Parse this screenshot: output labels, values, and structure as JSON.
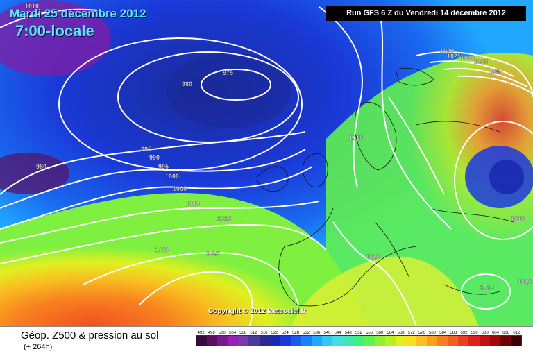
{
  "header": {
    "date": "Mardi 25 décembre 2012",
    "time": "7:00-locale",
    "run": "Run GFS 6 Z du Vendredi 14 décembre 2012"
  },
  "map": {
    "isobars": [
      {
        "label": "1010",
        "unit": "hPa"
      },
      {
        "label": "975",
        "unit": "hPa"
      },
      {
        "label": "980",
        "unit": "hPa"
      },
      {
        "label": "980",
        "unit": "hPa"
      },
      {
        "label": "985",
        "unit": "hPa"
      },
      {
        "label": "990",
        "unit": "hPa"
      },
      {
        "label": "995",
        "unit": "hPa"
      },
      {
        "label": "1000",
        "unit": "hPa"
      },
      {
        "label": "1005",
        "unit": "hPa"
      },
      {
        "label": "1010",
        "unit": "hPa"
      },
      {
        "label": "1015",
        "unit": "hPa"
      },
      {
        "label": "1020",
        "unit": "hPa"
      },
      {
        "label": "1025",
        "unit": "hPa"
      },
      {
        "label": "1020",
        "unit": "hPa"
      },
      {
        "label": "1025",
        "unit": "hPa"
      },
      {
        "label": "1030",
        "unit": "hPa"
      },
      {
        "label": "1035",
        "unit": "hPa"
      },
      {
        "label": "1040",
        "unit": "hPa"
      },
      {
        "label": "1015",
        "unit": "hPa"
      },
      {
        "label": "1010",
        "unit": "hPa"
      },
      {
        "label": "1010",
        "unit": "hPa"
      },
      {
        "label": "1010",
        "unit": "hPa"
      },
      {
        "label": "1010",
        "unit": "hPa"
      }
    ],
    "copyright": "Copyright © 2012 Meteociel.fr"
  },
  "footer": {
    "caption": "Géop. Z500 & pression au sol",
    "subcaption": "(+ 264h)"
  },
  "scale": {
    "labels": [
      "492",
      "496",
      "500",
      "504",
      "508",
      "512",
      "516",
      "520",
      "524",
      "528",
      "532",
      "536",
      "540",
      "544",
      "548",
      "552",
      "556",
      "560",
      "564",
      "568",
      "572",
      "576",
      "580",
      "584",
      "588",
      "592",
      "596",
      "600",
      "604",
      "608",
      "612"
    ],
    "colors": [
      "#3a0a3a",
      "#5a1060",
      "#7a1890",
      "#9a20b8",
      "#7a3aa8",
      "#4a3a9a",
      "#2a2a8a",
      "#1a2ab0",
      "#1a3ae0",
      "#1a5af0",
      "#1a80ff",
      "#20a8ff",
      "#30c8f8",
      "#40e0e0",
      "#40e8b0",
      "#40f080",
      "#60f050",
      "#90f030",
      "#b8f020",
      "#e0f020",
      "#f8e020",
      "#f8c020",
      "#f8a020",
      "#f88020",
      "#f06020",
      "#e84020",
      "#e02020",
      "#c01010",
      "#a00808",
      "#700404",
      "#400000"
    ]
  }
}
